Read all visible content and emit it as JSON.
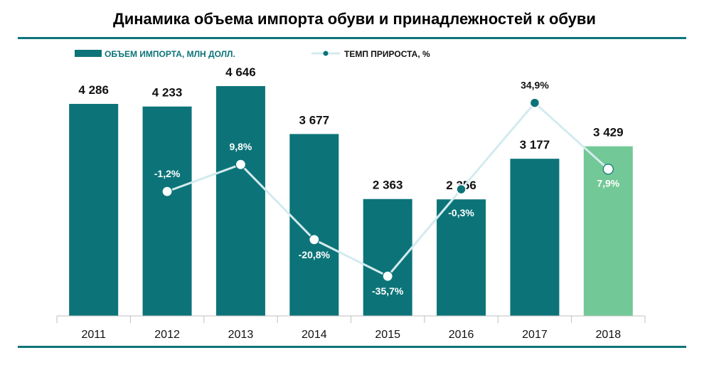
{
  "title": "Динамика объема импорта обуви и принадлежностей к обуви",
  "colors": {
    "bar": "#0c7479",
    "bar_highlight": "#72c896",
    "line": "#d3ebef",
    "rule": "#0c7479"
  },
  "chart_data": {
    "type": "bar",
    "categories": [
      "2011",
      "2012",
      "2013",
      "2014",
      "2015",
      "2016",
      "2017",
      "2018"
    ],
    "series": [
      {
        "name": "ОБЪЕМ ИМПОРТА, МЛН ДОЛЛ.",
        "type": "bar",
        "values": [
          4286,
          4233,
          4646,
          3677,
          2363,
          2356,
          3177,
          3429
        ],
        "labels": [
          "4 286",
          "4 233",
          "4 646",
          "3 677",
          "2 363",
          "2 356",
          "3 177",
          "3 429"
        ]
      },
      {
        "name": "ТЕМП ПРИРОСТА, %",
        "type": "line",
        "values": [
          null,
          -1.2,
          9.8,
          -20.8,
          -35.7,
          -0.3,
          34.9,
          7.9
        ],
        "labels": [
          "",
          "-1,2%",
          "9,8%",
          "-20,8%",
          "-35,7%",
          "-0,3%",
          "34,9%",
          "7,9%"
        ]
      }
    ],
    "legend": "top-left",
    "grid": false
  }
}
